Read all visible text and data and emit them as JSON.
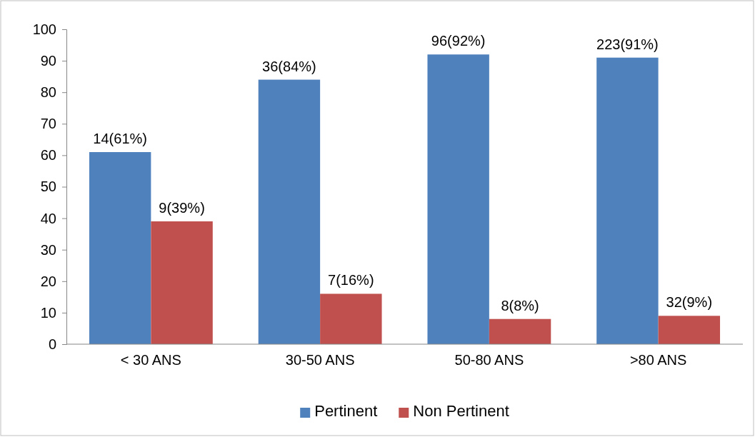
{
  "chart_data": {
    "type": "bar",
    "categories": [
      "< 30 ANS",
      "30-50 ANS",
      "50-80 ANS",
      ">80 ANS"
    ],
    "series": [
      {
        "name": "Pertinent",
        "color": "#4f81bd",
        "values": [
          61,
          84,
          92,
          91
        ],
        "value_labels": [
          "14(61%)",
          "36(84%)",
          "96(92%)",
          "223(91%)"
        ]
      },
      {
        "name": "Non Pertinent",
        "color": "#c0504d",
        "values": [
          39,
          16,
          8,
          9
        ],
        "value_labels": [
          "9(39%)",
          "7(16%)",
          "8(8%)",
          "32(9%)"
        ]
      }
    ],
    "ylim": [
      0,
      100
    ],
    "yticks": [
      0,
      10,
      20,
      30,
      40,
      50,
      60,
      70,
      80,
      90,
      100
    ],
    "grid": false,
    "legend": "bottom"
  }
}
